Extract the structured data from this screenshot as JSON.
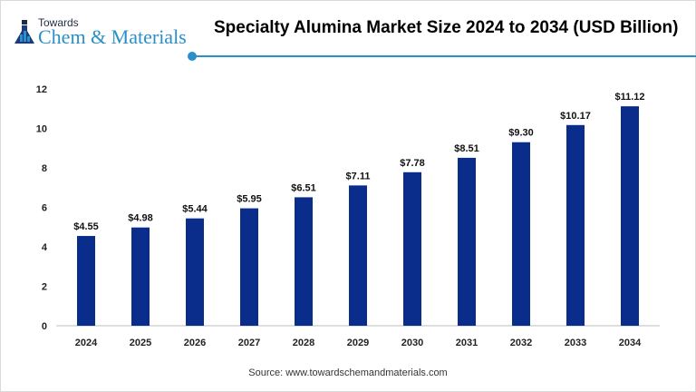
{
  "logo": {
    "line1": "Towards",
    "line2": "Chem & Materials"
  },
  "colors": {
    "bar": "#0a2d8c",
    "accent": "#2b8fc9"
  },
  "chart_data": {
    "type": "bar",
    "title": "Specialty Alumina Market Size 2024 to 2034 (USD Billion)",
    "categories": [
      "2024",
      "2025",
      "2026",
      "2027",
      "2028",
      "2029",
      "2030",
      "2031",
      "2032",
      "2033",
      "2034"
    ],
    "values": [
      4.55,
      4.98,
      5.44,
      5.95,
      6.51,
      7.11,
      7.78,
      8.51,
      9.3,
      10.17,
      11.12
    ],
    "data_labels": [
      "$4.55",
      "$4.98",
      "$5.44",
      "$5.95",
      "$6.51",
      "$7.11",
      "$7.78",
      "$8.51",
      "$9.30",
      "$10.17",
      "$11.12"
    ],
    "yticks": [
      0,
      2,
      4,
      6,
      8,
      10,
      12
    ],
    "ylim": [
      0,
      12
    ],
    "grid": false,
    "xlabel": "",
    "ylabel": ""
  },
  "source": "Source: www.towardschemandmaterials.com"
}
